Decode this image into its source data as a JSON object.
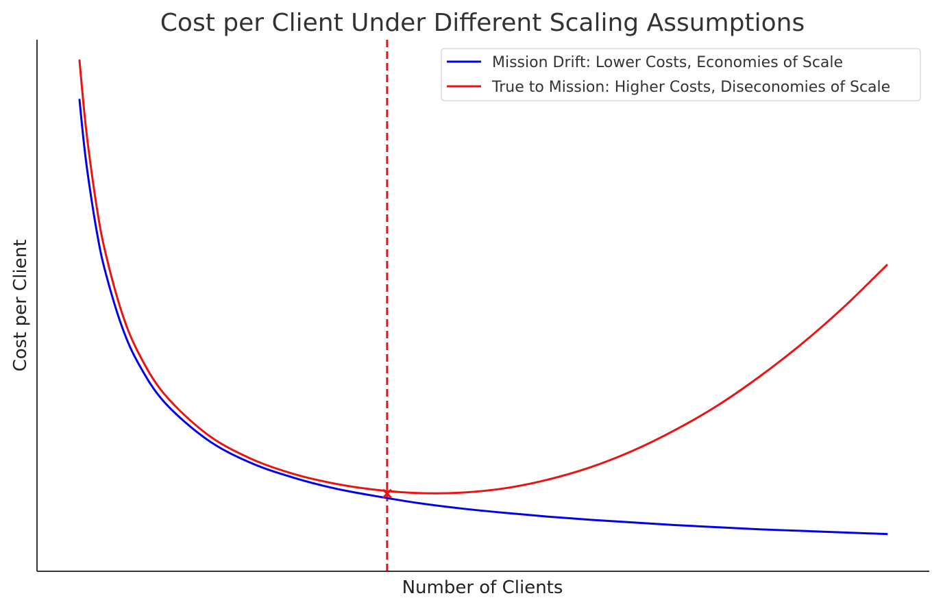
{
  "chart_data": {
    "type": "line",
    "title": "Cost per Client Under Different Scaling Assumptions",
    "xlabel": "Number of Clients",
    "ylabel": "Cost per Client",
    "xlim": [
      0,
      1.05
    ],
    "ylim": [
      0,
      1.0
    ],
    "x_ticks_shown": false,
    "y_ticks_shown": false,
    "grid": false,
    "legend_position": "top-right",
    "series": [
      {
        "name": "Mission Drift: Lower Costs, Economies of Scale",
        "color": "#0000ee",
        "x": [
          0.05,
          0.055,
          0.06,
          0.07,
          0.08,
          0.1,
          0.12,
          0.15,
          0.2,
          0.25,
          0.3,
          0.35,
          0.4,
          0.45,
          0.5,
          0.55,
          0.6,
          0.65,
          0.7,
          0.75,
          0.8,
          0.85,
          0.9,
          0.95,
          1.0
        ],
        "y": [
          0.887,
          0.808,
          0.744,
          0.642,
          0.566,
          0.46,
          0.389,
          0.318,
          0.248,
          0.205,
          0.177,
          0.156,
          0.141,
          0.128,
          0.118,
          0.11,
          0.103,
          0.097,
          0.092,
          0.087,
          0.083,
          0.079,
          0.076,
          0.073,
          0.07
        ]
      },
      {
        "name": "True to Mission: Higher Costs, Diseconomies of Scale",
        "color": "#ee1111",
        "x": [
          0.05,
          0.055,
          0.06,
          0.07,
          0.08,
          0.1,
          0.12,
          0.15,
          0.2,
          0.25,
          0.3,
          0.35,
          0.4,
          0.45,
          0.5,
          0.55,
          0.6,
          0.65,
          0.7,
          0.75,
          0.8,
          0.85,
          0.9,
          0.95,
          1.0
        ],
        "y": [
          0.961,
          0.874,
          0.802,
          0.688,
          0.603,
          0.486,
          0.409,
          0.333,
          0.258,
          0.213,
          0.184,
          0.165,
          0.153,
          0.147,
          0.148,
          0.156,
          0.172,
          0.195,
          0.226,
          0.265,
          0.311,
          0.366,
          0.428,
          0.498,
          0.576
        ]
      }
    ],
    "annotations": [
      {
        "type": "vline",
        "x": 0.412,
        "color": "#ee1111",
        "style": "dashed"
      },
      {
        "type": "marker",
        "x": 0.412,
        "y": 0.146,
        "symbol": "x",
        "color": "#ee1111"
      }
    ]
  }
}
